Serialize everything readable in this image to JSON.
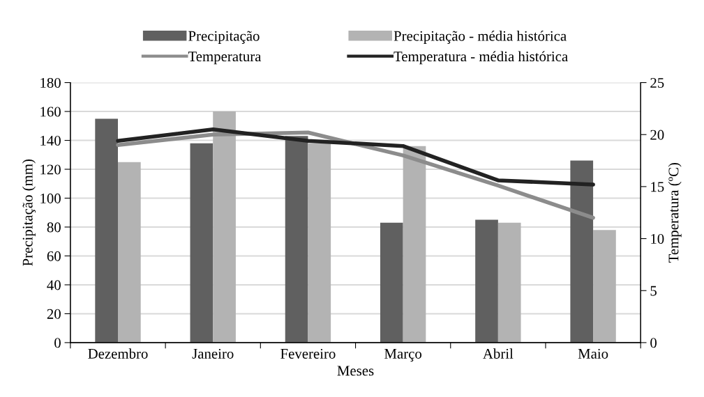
{
  "chart_data": {
    "type": "bar",
    "categories": [
      "Dezembro",
      "Janeiro",
      "Fevereiro",
      "Março",
      "Abril",
      "Maio"
    ],
    "xlabel": "Meses",
    "ylabel": "Precipitação (mm)",
    "y2label": "Temperatura (ºC)",
    "ylim": [
      0,
      180
    ],
    "yticks": [
      0,
      20,
      40,
      60,
      80,
      100,
      120,
      140,
      160,
      180
    ],
    "y2lim": [
      0,
      25
    ],
    "y2ticks": [
      0,
      5,
      10,
      15,
      20,
      25
    ],
    "grid": "y",
    "legend": "top",
    "series": [
      {
        "name": "Precipitação",
        "color": "#606060",
        "values": [
          155,
          138,
          143,
          83,
          85,
          126
        ]
      },
      {
        "name": "Precipitação - média histórica",
        "color": "#b3b3b3",
        "values": [
          125,
          160,
          138,
          136,
          83,
          78
        ]
      },
      {
        "name": "Temperatura",
        "type": "line",
        "axis": "y2",
        "color": "#8c8c8c",
        "values": [
          19.0,
          20.0,
          20.2,
          18.0,
          15.1,
          12.0
        ]
      },
      {
        "name": "Temperatura - média histórica",
        "type": "line",
        "axis": "y2",
        "color": "#222222",
        "values": [
          19.4,
          20.5,
          19.4,
          18.9,
          15.6,
          15.2
        ]
      }
    ]
  }
}
